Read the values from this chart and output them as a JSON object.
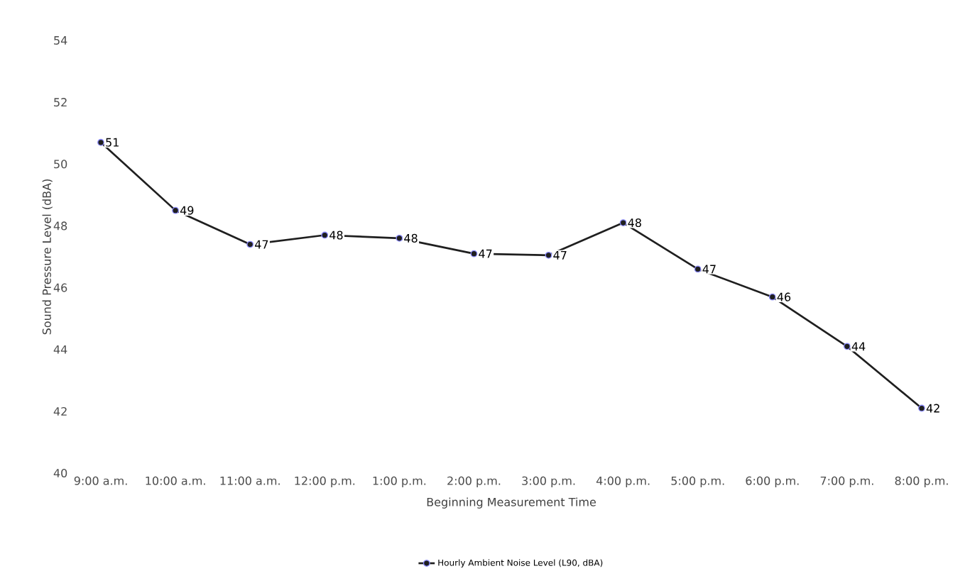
{
  "chart_data": {
    "type": "line",
    "xlabel": "Beginning Measurement Time",
    "ylabel": "Sound Pressure Level  (dBA)",
    "categories": [
      "9:00 a.m.",
      "10:00 a.m.",
      "11:00 a.m.",
      "12:00 p.m.",
      "1:00 p.m.",
      "2:00 p.m.",
      "3:00 p.m.",
      "4:00 p.m.",
      "5:00 p.m.",
      "6:00 p.m.",
      "7:00 p.m.",
      "8:00 p.m."
    ],
    "series": [
      {
        "name": "Hourly Ambient Noise Level (L90, dBA)",
        "color": "#1f1f1f",
        "values": [
          50.7,
          48.5,
          47.4,
          47.7,
          47.6,
          47.1,
          47.05,
          48.1,
          46.6,
          45.7,
          44.1,
          42.1
        ],
        "value_labels": [
          "51",
          "49",
          "47",
          "48",
          "48",
          "47",
          "47",
          "48",
          "47",
          "46",
          "44",
          "42"
        ]
      }
    ],
    "ylim": [
      40,
      54
    ],
    "yticks": [
      40,
      42,
      44,
      46,
      48,
      50,
      52,
      54
    ],
    "grid": false,
    "legend": "bottom",
    "marker": "circle",
    "line_style": "solid"
  }
}
